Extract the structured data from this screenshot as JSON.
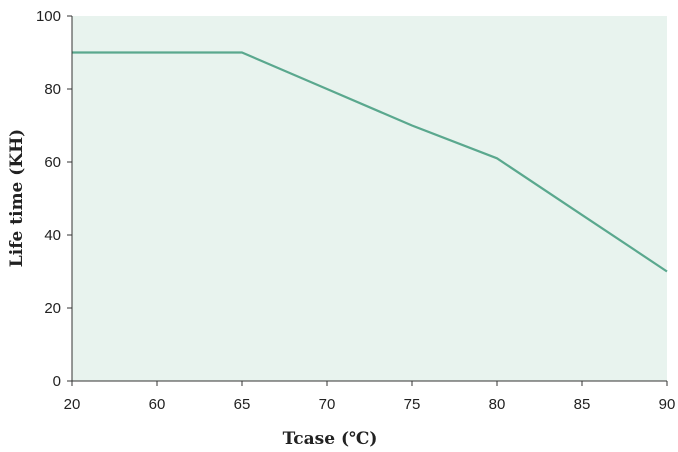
{
  "chart_data": {
    "type": "line",
    "title": "",
    "xlabel": "Tcase (℃)",
    "ylabel": "Life time (KH)",
    "x_tick_labels": [
      "20",
      "60",
      "65",
      "70",
      "75",
      "80",
      "85",
      "90"
    ],
    "y_ticks": [
      0,
      20,
      40,
      60,
      80,
      100
    ],
    "ylim": [
      0,
      100
    ],
    "grid": false,
    "legend": "none",
    "series": [
      {
        "x": [
          "20",
          "60",
          "65",
          "70",
          "75",
          "80",
          "85",
          "90"
        ],
        "values": [
          90,
          90,
          90,
          80,
          70,
          61,
          45.5,
          30
        ]
      }
    ],
    "colors": {
      "plot_background": "#e8f3ee",
      "line": "#5aa88e",
      "axis": "#333333"
    }
  }
}
